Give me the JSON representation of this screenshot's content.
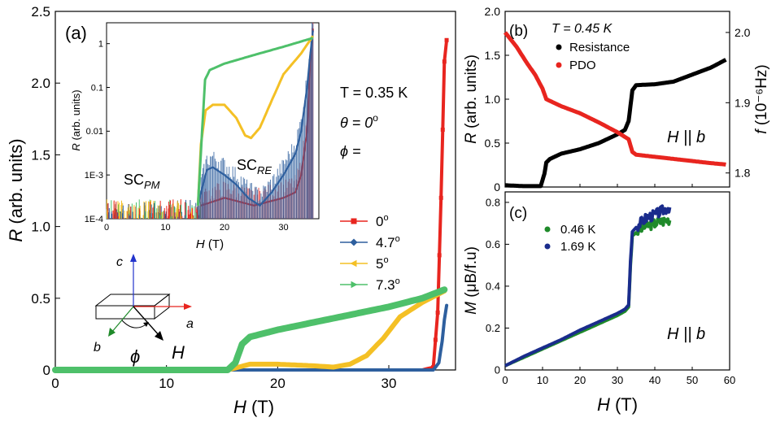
{
  "chart_data": [
    {
      "id": "a",
      "type": "scatter",
      "panel_label": "(a)",
      "xlabel_var": "H",
      "xlabel_unit": " (T)",
      "ylabel_var": "R",
      "ylabel_unit": " (arb. units)",
      "xlim": [
        0,
        36
      ],
      "ylim": [
        0,
        2.5
      ],
      "xticks": [
        0,
        10,
        20,
        30
      ],
      "yticks": [
        0,
        0.5,
        1.0,
        1.5,
        2.0,
        2.5
      ],
      "ytick_labels": [
        "0",
        "0.5",
        "1.0",
        "1.5",
        "2.0",
        "2.5"
      ],
      "annotations": {
        "temperature": "T = 0.35 K",
        "theta": "θ = 0",
        "theta_sup": "o",
        "phi": "ϕ ="
      },
      "legend_position": "right",
      "series": [
        {
          "name": "0",
          "sup": "o",
          "color": "#e8251f",
          "marker": "square",
          "x": [
            0,
            10,
            20,
            30,
            33,
            34,
            34.4,
            34.7,
            35.0,
            35.2
          ],
          "y": [
            0,
            0,
            0,
            0,
            0,
            0.02,
            0.4,
            1.2,
            2.15,
            2.3
          ]
        },
        {
          "name": "4.7",
          "sup": "o",
          "color": "#2e5f9e",
          "marker": "diamond",
          "x": [
            0,
            10,
            20,
            30,
            34,
            34.5,
            34.8,
            35.0,
            35.2
          ],
          "y": [
            0,
            0,
            0,
            0,
            0,
            0.05,
            0.2,
            0.35,
            0.45
          ]
        },
        {
          "name": "5",
          "sup": "o",
          "color": "#f4c025",
          "marker": "triangle-left",
          "x": [
            0,
            15.5,
            16.5,
            17.5,
            20,
            23,
            25,
            26.5,
            28,
            29.5,
            31,
            33,
            34,
            35
          ],
          "y": [
            0,
            0,
            0.02,
            0.04,
            0.04,
            0.03,
            0.02,
            0.04,
            0.1,
            0.22,
            0.37,
            0.47,
            0.51,
            0.55
          ]
        },
        {
          "name": "7.3",
          "sup": "o",
          "color": "#4ec06a",
          "marker": "triangle-right",
          "x": [
            0,
            15.5,
            16.2,
            16.8,
            17.5,
            20,
            25,
            30,
            33,
            35
          ],
          "y": [
            0,
            0,
            0.05,
            0.18,
            0.23,
            0.28,
            0.36,
            0.44,
            0.5,
            0.56
          ]
        }
      ]
    },
    {
      "id": "a-inset",
      "type": "scatter",
      "xlabel_var": "H",
      "xlabel_unit": " (T)",
      "ylabel_var": "R",
      "ylabel_unit": " (arb. units)",
      "xlim": [
        0,
        36
      ],
      "ylim": [
        0.0001,
        3
      ],
      "yscale": "log",
      "xticks": [
        0,
        10,
        20,
        30
      ],
      "yticks": [
        0.0001,
        0.001,
        0.01,
        0.1,
        1
      ],
      "ytick_labels": [
        "1E-4",
        "1E-3",
        "0.01",
        "0.1",
        "1"
      ],
      "annotations": {
        "sc_pm": "SC",
        "sc_pm_sub": "PM",
        "sc_re": "SC",
        "sc_re_sub": "RE"
      },
      "series": [
        {
          "name": "0",
          "color": "#e8251f",
          "x": [
            16,
            20,
            25,
            30,
            32,
            33,
            34,
            34.5,
            35
          ],
          "y": [
            0.0002,
            0.0003,
            0.0002,
            0.0003,
            0.0004,
            0.001,
            0.01,
            0.3,
            2.2
          ]
        },
        {
          "name": "4.7",
          "color": "#2e5f9e",
          "x": [
            15.5,
            16.2,
            17,
            18,
            20,
            22,
            24,
            26,
            28,
            30,
            32,
            33,
            34,
            34.5,
            35
          ],
          "y": [
            0.0002,
            0.0005,
            0.0013,
            0.0015,
            0.001,
            0.0006,
            0.0003,
            0.0002,
            0.0004,
            0.001,
            0.003,
            0.01,
            0.1,
            0.5,
            2.0
          ]
        },
        {
          "name": "5",
          "color": "#f4c025",
          "x": [
            15.5,
            16,
            16.8,
            18,
            20,
            22,
            23.5,
            24.5,
            26,
            28,
            30,
            33,
            35
          ],
          "y": [
            0.0002,
            0.005,
            0.03,
            0.04,
            0.04,
            0.02,
            0.008,
            0.007,
            0.012,
            0.05,
            0.2,
            0.6,
            1.5
          ]
        },
        {
          "name": "7.3",
          "color": "#4ec06a",
          "x": [
            15.5,
            16.2,
            16.7,
            17.5,
            20,
            25,
            30,
            35
          ],
          "y": [
            0.0002,
            0.01,
            0.15,
            0.25,
            0.35,
            0.55,
            0.85,
            1.35
          ]
        }
      ]
    },
    {
      "id": "b",
      "type": "scatter",
      "panel_label": "(b)",
      "ylabel_var": "R",
      "ylabel_unit": " (arb. units)",
      "ylabel_right_var": "f",
      "ylabel_right_unit": " (10⁻⁶Hz)",
      "xlim": [
        0,
        60
      ],
      "ylim": [
        0,
        2.0
      ],
      "ylim_right": [
        1.78,
        2.03
      ],
      "yticks": [
        0,
        0.5,
        1.0,
        1.5,
        2.0
      ],
      "ytick_labels": [
        "0",
        "0.5",
        "1.0",
        "1.5",
        "2.0"
      ],
      "yticks_right": [
        1.8,
        1.9,
        2.0
      ],
      "ytick_right_labels": [
        "1.8",
        "1.9",
        "2.0"
      ],
      "annotations": {
        "temperature": "T = 0.45 K",
        "field_dir": "H || b"
      },
      "series": [
        {
          "name": "Resistance",
          "color": "#000000",
          "axis": "left",
          "x": [
            0,
            5,
            9.5,
            10.5,
            11,
            12,
            15,
            20,
            25,
            30,
            32,
            33,
            34,
            35,
            40,
            45,
            50,
            55,
            59
          ],
          "y": [
            0.02,
            0.01,
            0.01,
            0.15,
            0.28,
            0.32,
            0.38,
            0.43,
            0.5,
            0.6,
            0.65,
            0.75,
            1.1,
            1.16,
            1.17,
            1.2,
            1.28,
            1.36,
            1.45
          ]
        },
        {
          "name": "PDO",
          "color": "#e8251f",
          "axis": "right",
          "x": [
            0,
            3,
            6,
            8,
            10,
            11,
            13,
            15,
            20,
            25,
            30,
            33,
            34,
            35,
            40,
            45,
            50,
            55,
            59
          ],
          "y": [
            2.0,
            1.98,
            1.955,
            1.94,
            1.92,
            1.905,
            1.9,
            1.895,
            1.885,
            1.872,
            1.858,
            1.848,
            1.83,
            1.826,
            1.823,
            1.82,
            1.817,
            1.814,
            1.812
          ]
        }
      ]
    },
    {
      "id": "c",
      "type": "scatter",
      "panel_label": "(c)",
      "xlabel_var": "H",
      "xlabel_unit": " (T)",
      "ylabel_var": "M",
      "ylabel_unit": " (μB/f.u)",
      "xlim": [
        0,
        60
      ],
      "ylim": [
        0,
        0.85
      ],
      "xticks": [
        0,
        10,
        20,
        30,
        40,
        50,
        60
      ],
      "yticks": [
        0,
        0.2,
        0.4,
        0.6,
        0.8
      ],
      "ytick_labels": [
        "0",
        "0.2",
        "0.4",
        "0.6",
        "0.8"
      ],
      "annotations": {
        "field_dir": "H || b"
      },
      "series": [
        {
          "name": "0.46 K",
          "color": "#1f8a2a",
          "x": [
            0,
            5,
            10,
            15,
            20,
            25,
            30,
            32,
            33,
            33.5,
            34,
            36,
            38,
            40,
            42,
            44
          ],
          "y": [
            0.02,
            0.06,
            0.1,
            0.14,
            0.18,
            0.22,
            0.26,
            0.28,
            0.3,
            0.5,
            0.64,
            0.67,
            0.69,
            0.7,
            0.71,
            0.72
          ]
        },
        {
          "name": "1.69 K",
          "color": "#1a2c8c",
          "x": [
            0,
            5,
            10,
            15,
            20,
            25,
            30,
            32,
            33,
            33.5,
            34,
            36,
            38,
            40,
            42,
            44
          ],
          "y": [
            0.02,
            0.065,
            0.105,
            0.145,
            0.19,
            0.23,
            0.27,
            0.29,
            0.31,
            0.52,
            0.66,
            0.7,
            0.73,
            0.74,
            0.76,
            0.78
          ]
        }
      ]
    }
  ],
  "schematic": {
    "axis_c": "c",
    "axis_a": "a",
    "axis_b": "b",
    "angle": "ϕ",
    "field": "H"
  }
}
